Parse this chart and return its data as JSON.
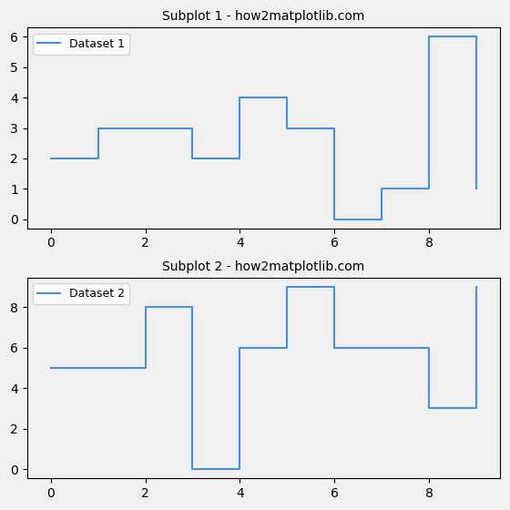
{
  "subplot1": {
    "title": "Subplot 1 - how2matplotlib.com",
    "x": [
      0,
      1,
      2,
      3,
      4,
      5,
      6,
      7,
      8,
      9
    ],
    "y": [
      2,
      3,
      3,
      2,
      4,
      3,
      0,
      1,
      6,
      1
    ],
    "label": "Dataset 1",
    "color": "#4a90d9",
    "where": "post"
  },
  "subplot2": {
    "title": "Subplot 2 - how2matplotlib.com",
    "x": [
      0,
      1,
      2,
      3,
      4,
      5,
      6,
      7,
      8,
      9
    ],
    "y": [
      5,
      5,
      8,
      0,
      6,
      9,
      6,
      6,
      3,
      9
    ],
    "label": "Dataset 2",
    "color": "#4a90d9",
    "where": "post"
  },
  "figsize": [
    5.6,
    5.6
  ],
  "dpi": 100,
  "background_color": "#f0f0f0"
}
